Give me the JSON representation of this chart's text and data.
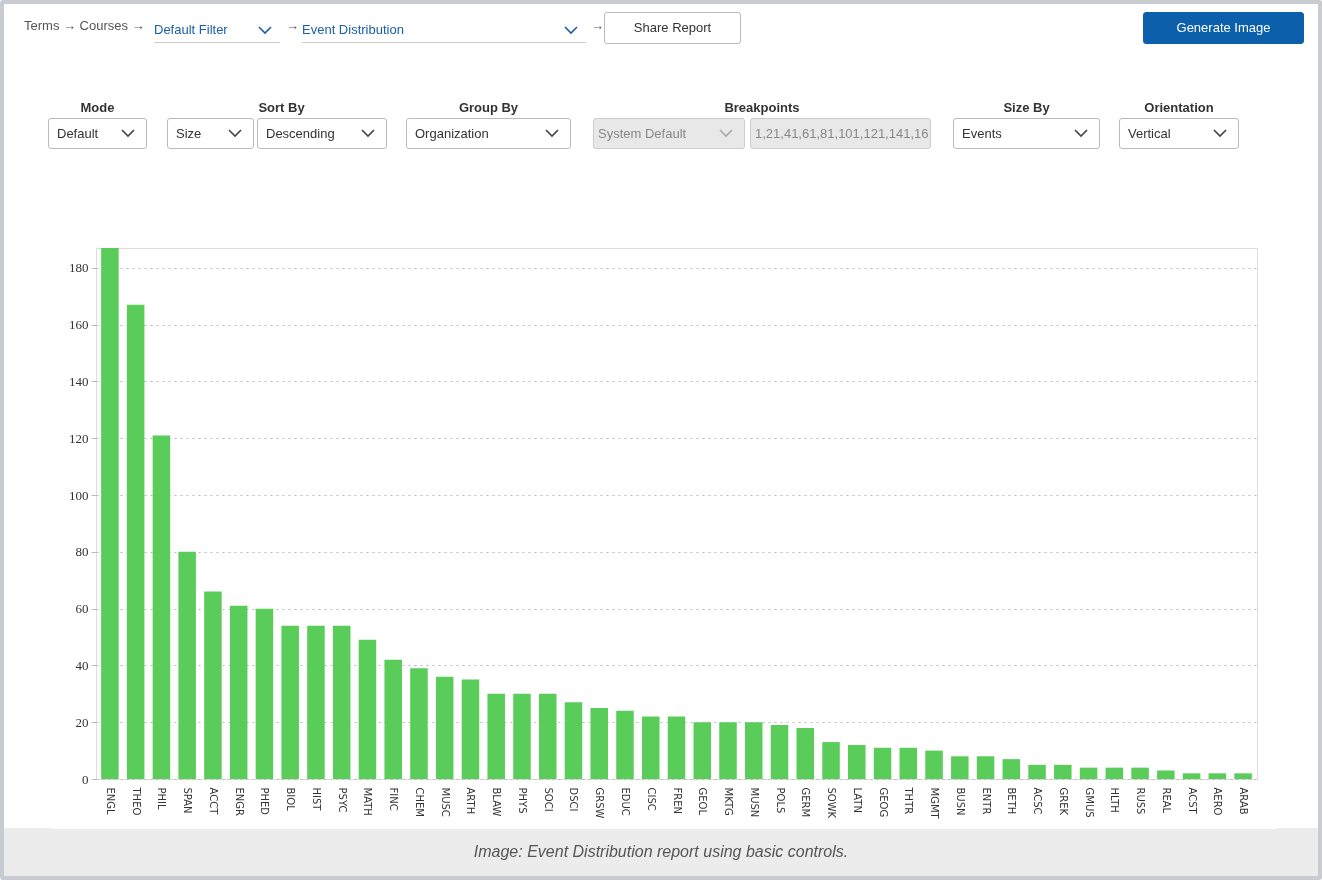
{
  "chart_data": {
    "type": "bar",
    "categories": [
      "ENGL",
      "THEO",
      "PHIL",
      "SPAN",
      "ACCT",
      "ENGR",
      "PHED",
      "BIOL",
      "HIST",
      "PSYC",
      "MATH",
      "FINC",
      "CHEM",
      "MUSC",
      "ARTH",
      "BLAW",
      "PHYS",
      "SOCI",
      "DSCI",
      "GRSW",
      "EDUC",
      "CISC",
      "FREN",
      "GEOL",
      "MKTG",
      "MUSN",
      "POLS",
      "GERM",
      "SOWK",
      "LATN",
      "GEOG",
      "THTR",
      "MGMT",
      "BUSN",
      "ENTR",
      "BETH",
      "ACSC",
      "GREK",
      "GMUS",
      "HLTH",
      "RUSS",
      "REAL",
      "ACST",
      "AERO",
      "ARAB"
    ],
    "values": [
      187,
      167,
      121,
      80,
      66,
      61,
      60,
      54,
      54,
      54,
      49,
      42,
      39,
      36,
      35,
      30,
      30,
      30,
      27,
      25,
      24,
      22,
      22,
      20,
      20,
      20,
      19,
      18,
      13,
      12,
      11,
      11,
      10,
      8,
      8,
      7,
      5,
      5,
      4,
      4,
      4,
      3,
      2,
      2,
      2
    ],
    "color": "#5acc5a",
    "ylim": [
      0,
      187
    ],
    "yticks": [
      0,
      20,
      40,
      60,
      80,
      100,
      120,
      140,
      160,
      180
    ],
    "grid": "y",
    "annotations": [
      "Terms → Courses →",
      "Default Filter",
      "→",
      "Event Distribution",
      "→",
      "Share Report",
      "Generate Image",
      "Mode",
      "Default",
      "Sort By",
      "Size",
      "Descending",
      "Group By",
      "Organization",
      "Breakpoints",
      "System Default",
      "1,21,41,61,81,101,121,141,16",
      "Size By",
      "Events",
      "Orientation",
      "Vertical",
      "Image: Event Distribution report using basic controls."
    ]
  }
}
